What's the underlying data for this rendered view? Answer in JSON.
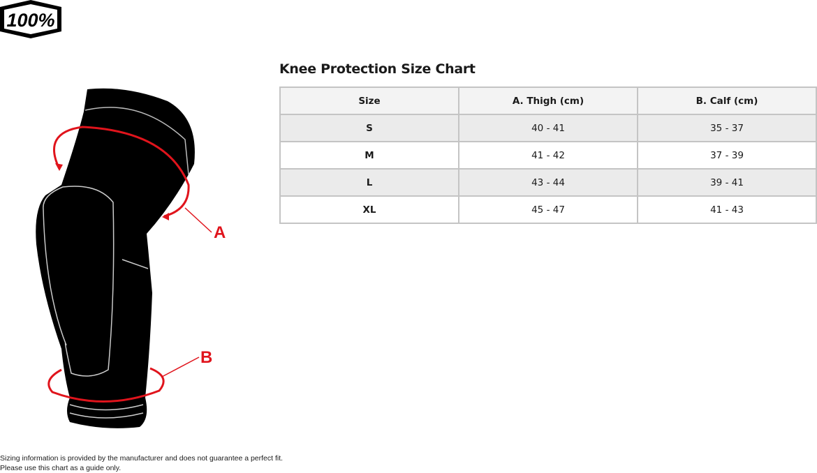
{
  "brand": {
    "logo_text": "100%"
  },
  "illustration": {
    "label_a": "A",
    "label_b": "B",
    "accent_color": "#e0141c"
  },
  "title": "Knee Protection Size Chart",
  "table": {
    "headers": [
      "Size",
      "A. Thigh (cm)",
      "B. Calf (cm)"
    ],
    "rows": [
      [
        "S",
        "40 - 41",
        "35 - 37"
      ],
      [
        "M",
        "41 - 42",
        "37 - 39"
      ],
      [
        "L",
        "43 - 44",
        "39 - 41"
      ],
      [
        "XL",
        "45 - 47",
        "41 - 43"
      ]
    ]
  },
  "footer": {
    "line1": "Sizing information is provided by the manufacturer and does not guarantee a perfect fit.",
    "line2": "Please use this chart as a guide only."
  }
}
